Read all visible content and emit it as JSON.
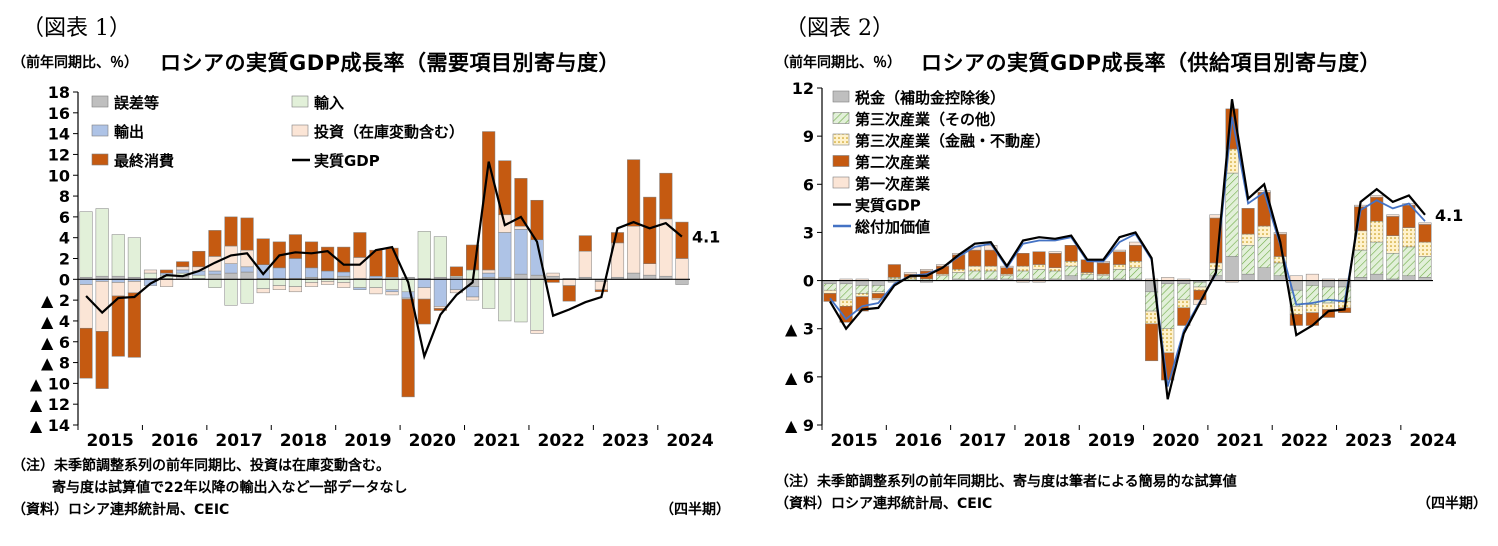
{
  "charts": [
    {
      "figure_label": "（図表 1）",
      "unit_label": "（前年同期比、％）",
      "title": "ロシアの実質GDP成長率（需要項目別寄与度）",
      "note1": "（注）未季節調整系列の前年同期比、投資は在庫変動含む。",
      "note2": "寄与度は試算値で22年以降の輸出入など一部データなし",
      "source": "（資料）ロシア連邦統計局、CEIC",
      "period_label": "（四半期）",
      "end_label": "4.1"
    },
    {
      "figure_label": "（図表 2）",
      "unit_label": "（前年同期比、％）",
      "title": "ロシアの実質GDP成長率（供給項目別寄与度）",
      "note1": "（注）未季節調整系列の前年同期比、寄与度は筆者による簡易的な試算値",
      "source": "（資料）ロシア連邦統計局、CEIC",
      "period_label": "（四半期）",
      "end_label": "4.1"
    }
  ],
  "chart_data": [
    {
      "type": "bar",
      "title": "ロシアの実質GDP成長率（需要項目別寄与度）",
      "ylabel": "（前年同期比、％）",
      "xlabel": "（四半期）",
      "ylim": [
        -14,
        18
      ],
      "y_ticks": [
        18,
        16,
        14,
        12,
        10,
        8,
        6,
        4,
        2,
        0,
        -2,
        -4,
        -6,
        -8,
        -10,
        -12,
        -14
      ],
      "y_tick_labels": [
        "18",
        "16",
        "14",
        "12",
        "10",
        "8",
        "6",
        "4",
        "2",
        "0",
        "▲ 2",
        "▲ 4",
        "▲ 6",
        "▲ 8",
        "▲ 10",
        "▲ 12",
        "▲ 14"
      ],
      "x_year_labels": [
        "2015",
        "2016",
        "2017",
        "2018",
        "2019",
        "2020",
        "2021",
        "2022",
        "2023",
        "2024"
      ],
      "quarters_per_year": 4,
      "n_quarters": 38,
      "series": [
        {
          "name": "誤差等",
          "kind": "bar",
          "color": "#bfbfbf",
          "values": [
            0.2,
            0.3,
            0.3,
            0.2,
            0.1,
            0.1,
            0.3,
            0.1,
            0.5,
            0.6,
            0.7,
            0.1,
            0.1,
            0.1,
            0.2,
            0.1,
            0.3,
            0.1,
            0.1,
            0.2,
            0.2,
            0.1,
            0.2,
            0.2,
            -0.7,
            0.2,
            0.2,
            0.5,
            0.4,
            0.3,
            0.1,
            0.2,
            -0.2,
            0.2,
            0.6,
            0.4,
            0.3,
            -0.5
          ]
        },
        {
          "name": "輸入",
          "kind": "bar",
          "color": "#e2f0d9",
          "values": [
            6.3,
            6.5,
            4.0,
            3.8,
            0.5,
            0.3,
            0.3,
            0.3,
            -0.8,
            -2.5,
            -2.3,
            -0.9,
            -0.6,
            -0.7,
            -0.3,
            -0.2,
            -0.3,
            -0.8,
            -0.8,
            -1.0,
            -1.2,
            4.5,
            3.9,
            0.1,
            0.9,
            -2.8,
            -4.0,
            -4.1,
            -4.9,
            0,
            0,
            0,
            0,
            0,
            0,
            0,
            0,
            0
          ]
        },
        {
          "name": "輸出",
          "kind": "bar",
          "color": "#aec3e6",
          "values": [
            -0.5,
            -0.2,
            -0.3,
            -0.2,
            -0.6,
            0.2,
            0.3,
            0.4,
            0.3,
            0.9,
            0.5,
            1.3,
            1.0,
            1.9,
            0.9,
            0.7,
            0.4,
            -0.2,
            0.2,
            -0.2,
            -0.6,
            -0.8,
            -2.6,
            -1.0,
            -1.0,
            0.4,
            4.3,
            4.3,
            3.4,
            0,
            0,
            0,
            0,
            0,
            0,
            0,
            0,
            0
          ]
        },
        {
          "name": "投資（在庫変動含む）",
          "kind": "bar",
          "color": "#fbe5d6",
          "values": [
            -4.2,
            -4.8,
            -1.3,
            -1.1,
            0.3,
            -0.7,
            0.3,
            0.4,
            1.4,
            1.7,
            1.6,
            -0.4,
            -0.4,
            -0.5,
            -0.4,
            -0.3,
            -0.5,
            2.0,
            -0.6,
            -0.3,
            -0.1,
            -1.1,
            -0.2,
            -0.3,
            -0.3,
            0.3,
            1.7,
            0.3,
            -0.3,
            0.3,
            -0.6,
            2.5,
            -0.8,
            3.3,
            4.5,
            1.1,
            5.5,
            2.0
          ]
        },
        {
          "name": "最終消費",
          "kind": "bar",
          "color": "#c55a11",
          "values": [
            -4.8,
            -5.5,
            -5.8,
            -6.2,
            0,
            0.3,
            0.5,
            1.5,
            2.5,
            2.8,
            3.1,
            2.5,
            2.5,
            2.3,
            2.5,
            2.3,
            2.4,
            2.4,
            2.5,
            2.8,
            -9.4,
            -2.4,
            -0.2,
            0.9,
            2.4,
            13.3,
            5.2,
            4.6,
            3.8,
            -0.3,
            -1.5,
            1.5,
            -0.2,
            1.0,
            6.4,
            6.4,
            4.4,
            3.5
          ]
        },
        {
          "name": "実質GDP",
          "kind": "line",
          "color": "#000000",
          "values": [
            -1.6,
            -3.2,
            -1.8,
            -1.7,
            -0.4,
            0.4,
            0.3,
            0.8,
            1.6,
            2.3,
            2.5,
            0.5,
            2.3,
            2.6,
            2.5,
            2.7,
            1.4,
            1.4,
            2.8,
            3.1,
            -0.3,
            -7.4,
            -3.4,
            -1.5,
            -0.3,
            11.3,
            5.2,
            6.0,
            3.6,
            -3.5,
            -2.9,
            -2.2,
            -1.7,
            4.9,
            5.5,
            4.9,
            5.4,
            4.1
          ]
        }
      ]
    },
    {
      "type": "bar",
      "title": "ロシアの実質GDP成長率（供給項目別寄与度）",
      "ylabel": "（前年同期比、％）",
      "xlabel": "（四半期）",
      "ylim": [
        -9,
        12
      ],
      "y_ticks": [
        12,
        9,
        6,
        3,
        0,
        -3,
        -6,
        -9
      ],
      "y_tick_labels": [
        "12",
        "9",
        "6",
        "3",
        "0",
        "▲ 3",
        "▲ 6",
        "▲ 9"
      ],
      "x_year_labels": [
        "2015",
        "2016",
        "2017",
        "2018",
        "2019",
        "2020",
        "2021",
        "2022",
        "2023",
        "2024"
      ],
      "quarters_per_year": 4,
      "n_quarters": 38,
      "series": [
        {
          "name": "税金（補助金控除後）",
          "kind": "bar",
          "color": "#bfbfbf",
          "values": [
            -0.2,
            -0.2,
            -0.3,
            -0.3,
            -0.1,
            0.0,
            -0.1,
            0.0,
            0.1,
            0.1,
            0.1,
            0.1,
            0.1,
            0.1,
            0.1,
            0.3,
            0.1,
            0.1,
            0.1,
            0.1,
            -0.7,
            -0.2,
            -0.2,
            -0.1,
            0.3,
            1.5,
            0.4,
            0.8,
            0.3,
            -0.6,
            -0.3,
            -0.4,
            -0.4,
            0.2,
            0.4,
            0.1,
            0.3,
            0.2
          ]
        },
        {
          "name": "第三次産業（その他）",
          "kind": "bar",
          "color": "#e2f0d9",
          "hatched": true,
          "values": [
            -0.4,
            -1.0,
            -0.5,
            -0.4,
            0.1,
            0.1,
            0.1,
            0.3,
            0.4,
            0.5,
            0.5,
            0.2,
            0.5,
            0.6,
            0.5,
            0.6,
            0.3,
            0.2,
            0.6,
            0.7,
            -1.2,
            -2.8,
            -1.0,
            -0.3,
            0.4,
            5.2,
            1.8,
            1.9,
            0.8,
            -1.0,
            -1.2,
            -1.0,
            -0.9,
            1.7,
            2.0,
            1.6,
            1.8,
            1.3
          ]
        },
        {
          "name": "第三次産業（金融・不動産）",
          "kind": "bar",
          "color": "#fff2cc",
          "dotted": true,
          "values": [
            -0.2,
            -0.4,
            -0.2,
            -0.1,
            0.1,
            0.1,
            0.0,
            0.1,
            0.2,
            0.3,
            0.3,
            0.1,
            0.3,
            0.3,
            0.2,
            0.3,
            0.1,
            0.1,
            0.3,
            0.4,
            -0.8,
            -1.5,
            -0.5,
            -0.2,
            0.4,
            1.5,
            0.7,
            0.7,
            0.4,
            -0.5,
            -0.5,
            -0.4,
            -0.4,
            1.2,
            1.3,
            1.1,
            1.2,
            0.9
          ]
        },
        {
          "name": "第二次産業",
          "kind": "bar",
          "color": "#c55a11",
          "values": [
            -0.5,
            -1.0,
            -0.9,
            -0.3,
            0.8,
            0.2,
            0.5,
            0.5,
            0.9,
            1.0,
            1.0,
            0.4,
            0.8,
            0.8,
            0.9,
            1.0,
            0.8,
            0.7,
            0.8,
            1.0,
            -2.3,
            -1.7,
            -1.1,
            -0.6,
            2.8,
            2.5,
            1.6,
            2.1,
            1.4,
            -0.7,
            -0.8,
            -0.5,
            -0.3,
            1.5,
            1.5,
            1.2,
            1.4,
            1.1
          ]
        },
        {
          "name": "第一次産業",
          "kind": "bar",
          "color": "#fbe5d6",
          "values": [
            0.0,
            0.1,
            0.1,
            -0.1,
            0.0,
            0.1,
            0.1,
            0.1,
            0.1,
            0.2,
            0.3,
            0.1,
            -0.1,
            -0.1,
            0.1,
            0.0,
            0.0,
            0.1,
            0.1,
            0.2,
            0.1,
            0.2,
            0.1,
            -0.3,
            0.2,
            -0.1,
            0.0,
            0.1,
            0.1,
            0.3,
            0.4,
            0.1,
            0.1,
            0.1,
            0.1,
            0.1,
            0.1,
            0.1
          ]
        },
        {
          "name": "実質GDP",
          "kind": "line",
          "color": "#000000",
          "values": [
            -1.3,
            -3.0,
            -1.8,
            -1.7,
            -0.3,
            0.3,
            0.3,
            0.8,
            1.6,
            2.3,
            2.4,
            0.9,
            2.5,
            2.7,
            2.6,
            2.8,
            1.3,
            1.3,
            2.7,
            3.0,
            1.4,
            -7.4,
            -3.3,
            -1.4,
            0.5,
            11.3,
            5.1,
            6.0,
            2.4,
            -3.4,
            -2.8,
            -1.9,
            -1.8,
            4.9,
            5.7,
            4.9,
            5.3,
            4.1
          ]
        },
        {
          "name": "総付加価値",
          "kind": "line",
          "color": "#4472c4",
          "values": [
            -1.1,
            -2.4,
            -1.6,
            -1.4,
            -0.2,
            0.3,
            0.4,
            0.8,
            1.5,
            2.1,
            2.3,
            0.8,
            2.3,
            2.5,
            2.5,
            2.7,
            1.2,
            1.2,
            2.4,
            2.9,
            1.3,
            -6.6,
            -3.1,
            -1.3,
            0.4,
            10.2,
            4.8,
            5.5,
            2.2,
            -1.5,
            -1.4,
            -1.2,
            -1.3,
            4.4,
            5.0,
            4.5,
            4.8,
            3.7
          ]
        }
      ]
    }
  ]
}
